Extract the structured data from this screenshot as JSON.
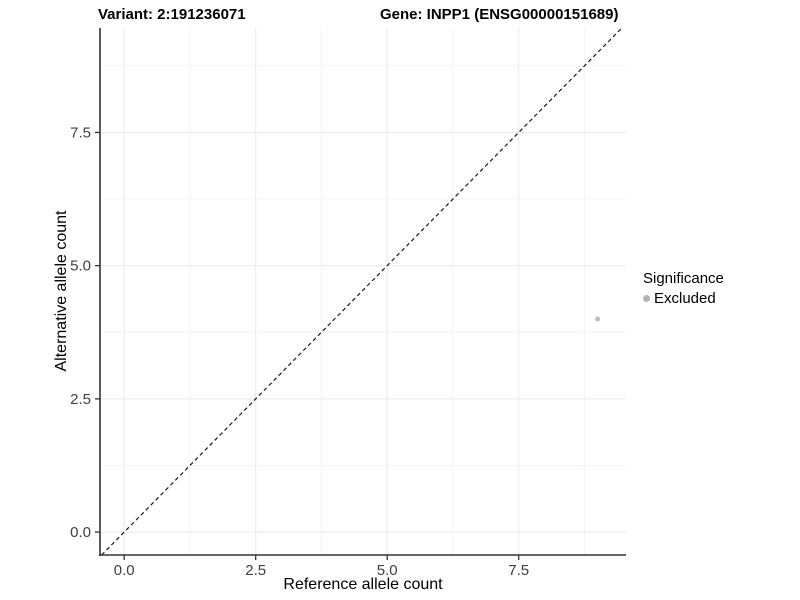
{
  "titles": {
    "variant": "Variant: 2:191236071",
    "gene": "Gene: INPP1 (ENSG00000151689)"
  },
  "colors": {
    "background": "#ffffff",
    "grid_major": "#e9e9e9",
    "grid_minor": "#f4f4f4",
    "axis_line": "#333333",
    "tick_label": "#404040",
    "reference_line": "#1a1a1a",
    "excluded_point": "#bebebe",
    "legend_dot": "#b3b3b3"
  },
  "chart_data": {
    "type": "scatter",
    "title_left": "Variant: 2:191236071",
    "title_right": "Gene: INPP1 (ENSG00000151689)",
    "xlabel": "Reference allele count",
    "ylabel": "Alternative allele count",
    "xlim": [
      -0.46,
      9.54
    ],
    "ylim": [
      -0.43,
      9.46
    ],
    "xticks": [
      0.0,
      2.5,
      5.0,
      7.5
    ],
    "yticks": [
      0.0,
      2.5,
      5.0,
      7.5
    ],
    "xminor": [
      1.25,
      3.75,
      6.25,
      8.75
    ],
    "yminor": [
      1.25,
      3.75,
      6.25,
      8.75
    ],
    "tick_label_format": "one_decimal",
    "grid": true,
    "reference_line": {
      "type": "abline",
      "slope": 1,
      "intercept": 0,
      "style": "dashed"
    },
    "series": [
      {
        "name": "Excluded",
        "color": "#bebebe",
        "point_radius": 2.5,
        "points": [
          {
            "x": 9,
            "y": 4
          }
        ]
      }
    ],
    "legend": {
      "title": "Significance",
      "position": "right",
      "items": [
        {
          "label": "Excluded",
          "color": "#b3b3b3"
        }
      ]
    }
  }
}
